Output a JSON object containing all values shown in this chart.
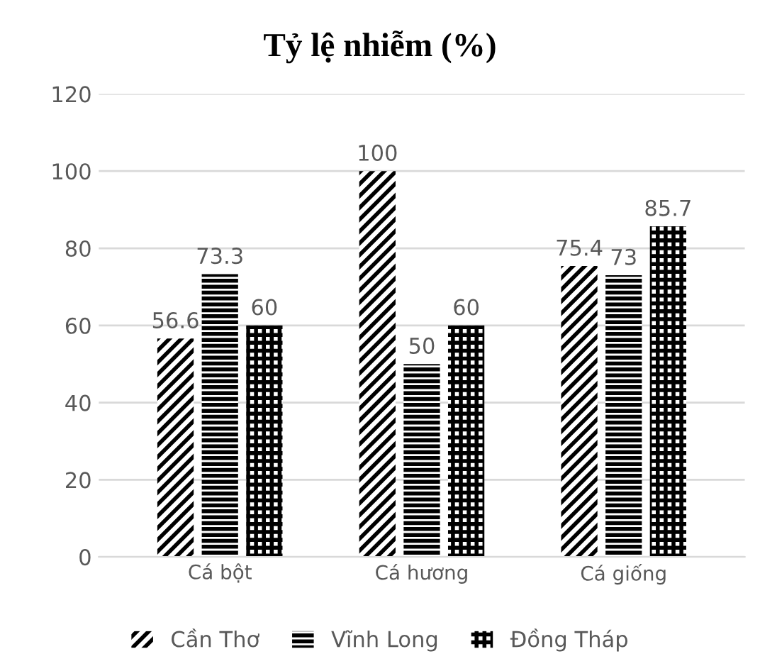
{
  "chart_data": {
    "type": "bar",
    "title": "Tỷ lệ nhiễm (%)",
    "categories": [
      "Cá bột",
      "Cá hương",
      "Cá giống"
    ],
    "series": [
      {
        "name": "Cần Thơ",
        "color": "#000000",
        "values": [
          56.6,
          100,
          75.4
        ]
      },
      {
        "name": "Vĩnh Long",
        "color": "#000000",
        "values": [
          73.3,
          50,
          73
        ]
      },
      {
        "name": "Đồng Tháp",
        "color": "#000000",
        "values": [
          60,
          60,
          85.7
        ]
      }
    ],
    "ylim": [
      0,
      120
    ],
    "yticks": [
      0,
      20,
      40,
      60,
      80,
      100,
      120
    ],
    "grid": "y",
    "legend": "bottom",
    "data_labels": true
  }
}
